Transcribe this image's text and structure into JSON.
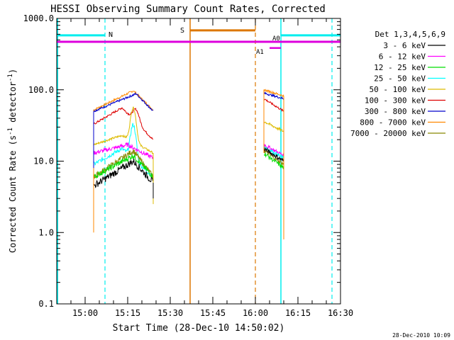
{
  "chart_data": {
    "type": "line",
    "title": "HESSI Observing Summary Count Rates, Corrected",
    "xlabel": "Start Time (28-Dec-10 14:50:02)",
    "ylabel_main": "Corrected Count Rate (s",
    "ylabel_sup1": "-1",
    "ylabel_mid": " detector",
    "ylabel_sup2": "-1",
    "ylabel_end": ")",
    "yscale": "log",
    "xlim": [
      "14:50",
      "16:30"
    ],
    "ylim": [
      0.1,
      1000
    ],
    "xticks": [
      "15:00",
      "15:15",
      "15:30",
      "15:45",
      "16:00",
      "16:15",
      "16:30"
    ],
    "yticks": [
      "0.1",
      "1.0",
      "10.0",
      "100.0",
      "1000.0"
    ],
    "timestamp": "28-Dec-2010 10:09",
    "legend_title": "Det 1,3,4,5,6,9",
    "legend_position": "right",
    "series": [
      {
        "name": "3 - 6 keV",
        "color": "#000000"
      },
      {
        "name": "6 - 12 keV",
        "color": "#ff00ff"
      },
      {
        "name": "12 - 25 keV",
        "color": "#00dd00"
      },
      {
        "name": "25 - 50 keV",
        "color": "#00ffff"
      },
      {
        "name": "50 - 100 keV",
        "color": "#ddbb00"
      },
      {
        "name": "100 - 300 keV",
        "color": "#dd0000"
      },
      {
        "name": "300 - 800 keV",
        "color": "#0000cc"
      },
      {
        "name": "800 - 7000 keV",
        "color": "#ff8800"
      },
      {
        "name": "7000 - 20000 keV",
        "color": "#888800"
      }
    ],
    "flags": [
      {
        "label": "N",
        "color": "#00eeee"
      },
      {
        "label": "S",
        "color": "#dd7700"
      },
      {
        "label": "A1",
        "color": "#dd00dd"
      },
      {
        "label": "A0",
        "color": "#dd00dd"
      }
    ]
  }
}
